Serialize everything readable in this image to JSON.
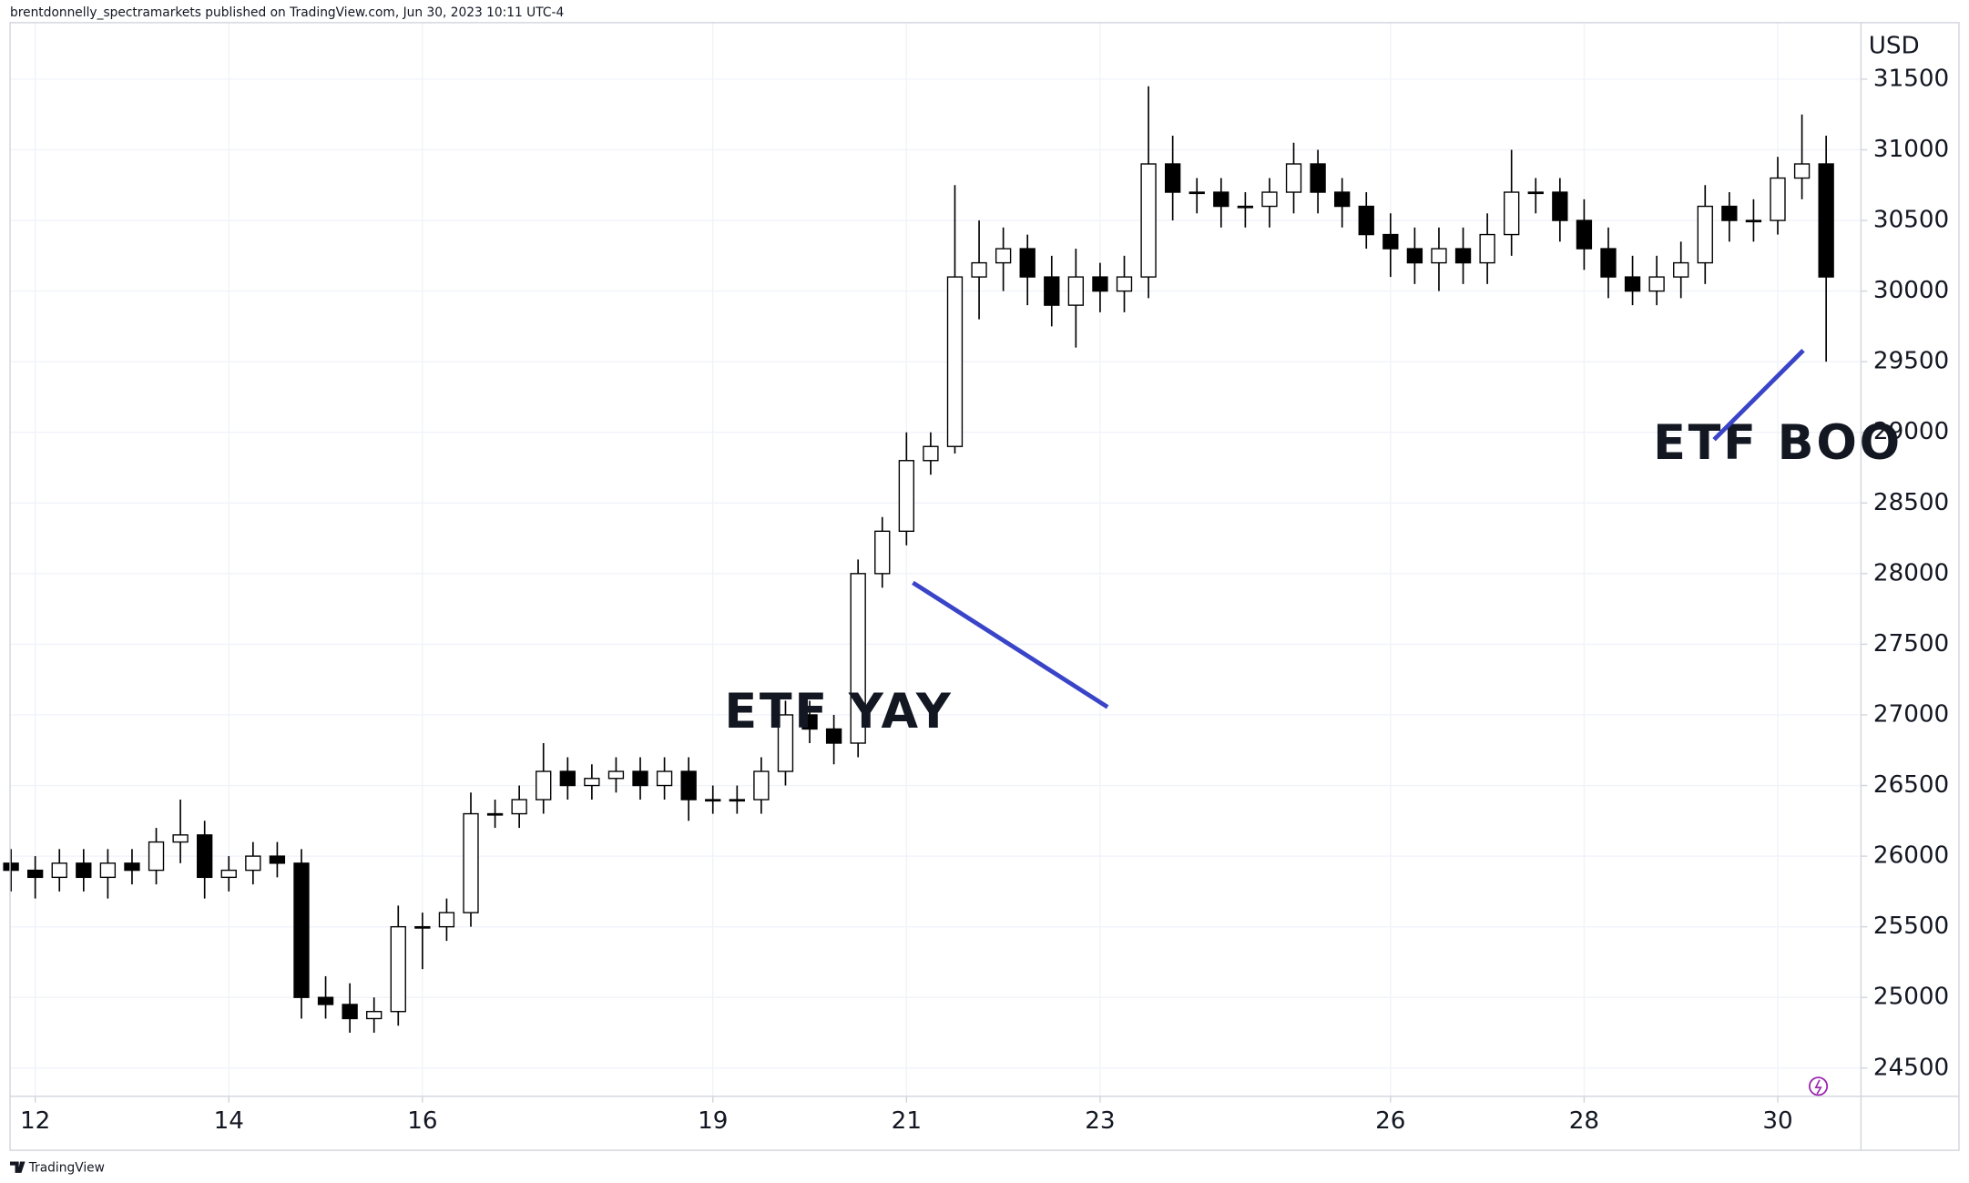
{
  "chart_data": {
    "type": "candlestick",
    "header": "brentdonnelly_spectramarkets published on TradingView.com, Jun 30, 2023 10:11 UTC-4",
    "currency": "USD",
    "brand": "TradingView",
    "annotations": [
      {
        "text": "ETF YAY",
        "x": 20.3,
        "y": 27000,
        "color": "#3a44c8"
      },
      {
        "text": "ETF BOO",
        "x": 30.0,
        "y": 28900,
        "color": "#3a44c8"
      }
    ],
    "x": [
      11.75,
      12,
      12.25,
      12.5,
      12.75,
      13,
      13.25,
      13.5,
      13.75,
      14,
      14.25,
      14.5,
      14.75,
      15,
      15.25,
      15.5,
      15.75,
      16,
      16.25,
      16.5,
      16.75,
      17,
      17.25,
      17.5,
      17.75,
      18,
      18.25,
      18.5,
      18.75,
      19,
      19.25,
      19.5,
      19.75,
      20,
      20.25,
      20.5,
      20.75,
      21,
      21.25,
      21.5,
      21.75,
      22,
      22.25,
      22.5,
      22.75,
      23,
      23.25,
      23.5,
      23.75,
      24,
      24.25,
      24.5,
      24.75,
      25,
      25.25,
      25.5,
      25.75,
      26,
      26.25,
      26.5,
      26.75,
      27,
      27.25,
      27.5,
      27.75,
      28,
      28.25,
      28.5,
      28.75,
      29,
      29.25,
      29.5,
      29.75,
      30,
      30.25,
      30.5
    ],
    "open": [
      25950,
      25900,
      25850,
      25950,
      25850,
      25950,
      25900,
      26100,
      26150,
      25850,
      25900,
      26000,
      25950,
      25000,
      24950,
      24850,
      24900,
      25500,
      25500,
      25600,
      26300,
      26300,
      26400,
      26600,
      26500,
      26550,
      26600,
      26500,
      26600,
      26400,
      26400,
      26400,
      26600,
      27000,
      26900,
      26800,
      28000,
      28300,
      28800,
      28900,
      30100,
      30200,
      30300,
      30100,
      29900,
      30100,
      30000,
      30100,
      30900,
      30700,
      30700,
      30600,
      30600,
      30700,
      30900,
      30700,
      30600,
      30400,
      30300,
      30200,
      30300,
      30200,
      30400,
      30700,
      30700,
      30500,
      30300,
      30100,
      30000,
      30100,
      30200,
      30600,
      30500,
      30500,
      30800,
      30900
    ],
    "high": [
      26050,
      26000,
      26050,
      26050,
      26050,
      26050,
      26200,
      26400,
      26250,
      26000,
      26100,
      26100,
      26050,
      25150,
      25100,
      25000,
      25650,
      25600,
      25700,
      26450,
      26400,
      26500,
      26800,
      26700,
      26650,
      26700,
      26700,
      26700,
      26700,
      26500,
      26500,
      26700,
      27100,
      27100,
      27000,
      28100,
      28400,
      29000,
      29000,
      30750,
      30500,
      30450,
      30400,
      30250,
      30300,
      30200,
      30250,
      31450,
      31100,
      30800,
      30800,
      30700,
      30800,
      31050,
      31000,
      30800,
      30700,
      30550,
      30450,
      30450,
      30450,
      30550,
      31000,
      30800,
      30800,
      30650,
      30450,
      30250,
      30250,
      30350,
      30750,
      30700,
      30650,
      30950,
      31250,
      31100
    ],
    "low": [
      25750,
      25700,
      25750,
      25750,
      25700,
      25800,
      25800,
      25950,
      25700,
      25750,
      25800,
      25850,
      24850,
      24850,
      24750,
      24750,
      24800,
      25200,
      25400,
      25500,
      26200,
      26200,
      26300,
      26400,
      26400,
      26450,
      26400,
      26400,
      26250,
      26300,
      26300,
      26300,
      26500,
      26800,
      26650,
      26700,
      27900,
      28200,
      28700,
      28850,
      29800,
      30000,
      29900,
      29750,
      29600,
      29850,
      29850,
      29950,
      30500,
      30550,
      30450,
      30450,
      30450,
      30550,
      30550,
      30450,
      30300,
      30100,
      30050,
      30000,
      30050,
      30050,
      30250,
      30550,
      30350,
      30150,
      29950,
      29900,
      29900,
      29950,
      30050,
      30350,
      30350,
      30400,
      30650,
      29500
    ],
    "close": [
      25900,
      25850,
      25950,
      25850,
      25950,
      25900,
      26100,
      26150,
      25850,
      25900,
      26000,
      25950,
      25000,
      24950,
      24850,
      24900,
      25500,
      25500,
      25600,
      26300,
      26300,
      26400,
      26600,
      26500,
      26550,
      26600,
      26500,
      26600,
      26400,
      26400,
      26400,
      26600,
      27000,
      26900,
      26800,
      28000,
      28300,
      28800,
      28900,
      30100,
      30200,
      30300,
      30100,
      29900,
      30100,
      30000,
      30100,
      30900,
      30700,
      30700,
      30600,
      30600,
      30700,
      30900,
      30700,
      30600,
      30400,
      30300,
      30200,
      30300,
      30200,
      30400,
      30700,
      30700,
      30500,
      30300,
      30100,
      30000,
      30100,
      30200,
      30600,
      30500,
      30500,
      30800,
      30900,
      30100
    ],
    "up_color": "#ffffff",
    "down_color": "#000000",
    "wick_color": "#000000",
    "xlim": [
      11.74,
      30.86
    ],
    "ylim": [
      24300,
      31900
    ],
    "xticks": [
      12,
      14,
      16,
      19,
      21,
      23,
      26,
      28,
      30
    ],
    "yticks": [
      24500,
      25000,
      25500,
      26000,
      26500,
      27000,
      27500,
      28000,
      28500,
      29000,
      29500,
      30000,
      30500,
      31000,
      31500
    ],
    "grid": true
  }
}
